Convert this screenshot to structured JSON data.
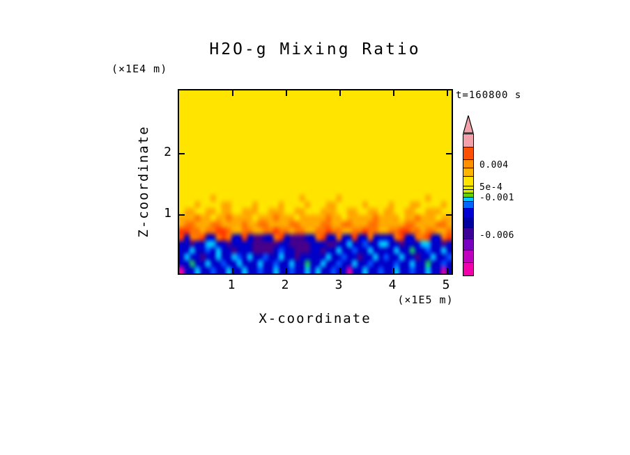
{
  "figure": {
    "background": "#ffffff",
    "text_color": "#000000"
  },
  "title": "H2O-g Mixing Ratio",
  "annotations": {
    "time_label": "t=160800 s"
  },
  "axes": {
    "x": {
      "label": "X-coordinate",
      "unit": "(×1E5 m)",
      "ticks": [
        "1",
        "2",
        "3",
        "4",
        "5"
      ],
      "tick_values": [
        1,
        2,
        3,
        4,
        5
      ]
    },
    "z": {
      "label": "Z-coordinate",
      "unit": "(×1E4 m)",
      "ticks": [
        "1",
        "2"
      ],
      "tick_values": [
        1,
        2
      ]
    }
  },
  "colorbar": {
    "arrow_color": "#f2a0aa",
    "labels": [
      {
        "text": "0.004",
        "value": 0.004,
        "pos_pct": 22.7
      },
      {
        "text": "5e-4",
        "value": 0.0005,
        "pos_pct": 38.4
      },
      {
        "text": "-0.001",
        "value": -0.001,
        "pos_pct": 45.8
      },
      {
        "text": "-0.006",
        "value": -0.006,
        "pos_pct": 72.4
      }
    ],
    "segments": [
      {
        "color": "#f2a0aa",
        "h": 18
      },
      {
        "color": "#ff5000",
        "h": 18
      },
      {
        "color": "#ff9000",
        "h": 12
      },
      {
        "color": "#ffb400",
        "h": 12
      },
      {
        "color": "#ffe400",
        "h": 14
      },
      {
        "color": "#e6eb00",
        "h": 5
      },
      {
        "color": "#cdeb00",
        "h": 5
      },
      {
        "color": "#64d200",
        "h": 6
      },
      {
        "color": "#00c8ff",
        "h": 6
      },
      {
        "color": "#0064ff",
        "h": 10
      },
      {
        "color": "#0000d2",
        "h": 14
      },
      {
        "color": "#0000a0",
        "h": 14
      },
      {
        "color": "#3c0096",
        "h": 16
      },
      {
        "color": "#7800be",
        "h": 16
      },
      {
        "color": "#be00be",
        "h": 18
      },
      {
        "color": "#f000aa",
        "h": 19
      }
    ]
  },
  "chart_data": {
    "type": "heatmap",
    "title": "H2O-g Mixing Ratio",
    "xlabel": "X-coordinate (×1E5 m)",
    "ylabel": "Z-coordinate (×1E4 m)",
    "time_label": "t=160800 s",
    "x_range": [
      0,
      5.13
    ],
    "z_range": [
      0,
      3.03
    ],
    "legend_position": "right",
    "value_of_level": {
      "y": 0.001,
      "o": 0.003,
      "O": 0.004,
      "r": 0.005,
      "g": 0.0002,
      "c": -0.001,
      "b": -0.002,
      "n": -0.004,
      "p": -0.006,
      "m": -0.008
    },
    "palette": {
      "y": "#ffe400",
      "o": "#ffaa00",
      "O": "#ff7300",
      "r": "#ff3c00",
      "g": "#19c864",
      "c": "#00c8ff",
      "b": "#0055ff",
      "n": "#0000c8",
      "p": "#46008c",
      "m": "#e100aa"
    },
    "grid_rows_top_to_bottom": [
      "yyyyyyyyyyyyyyyyyyyyyyyyyyyyyyyyyyyyyyyyyyyyyyyyyyyy",
      "yyyyyyyyyyyyyyyyyyyyyyyyyyyyyyyyyyyyyyyyyyyyyyyyyyyy",
      "yyyyyyyyyyyyyyyyyyyyyyyyyyyyyyyyyyyyyyyyyyyyyyyyyyyy",
      "yyyyyyyyyyyyyyyyyyyyyyyyyyyyyyyyyyyyyyyyyyyyyyyyyyyy",
      "yyyyyyyyyyyyyyyyyyyyyyyyyyyyyyyyyyyyyyyyyyyyyyyyyyyy",
      "yyyyyyyyyyyyyyyyyyyyyyyyyyyyyyyyyyyyyyyyyyyyyyyyyyyy",
      "yyyyyyyyyyyyyyyyyyyyyyyyyyyyyyyyyyyyyyyyyyyyyyyyyyyy",
      "yyyyyyyyyyyyyyyyyyyyyyyyyyyyyyyyyyyyyyyyyyyyyyyyyyyy",
      "yyyyyyyyyyyyyyyyyyyyyyyyyyyyyyyyyyyyyyyyyyyyyyyyyyyy",
      "yyyyyyyyyyyyyyyyyyyyyyyyyyyyyyyyyyyyyyyyyyyyyyyyyyyy",
      "yyyyyyyyyyyyyyyyyyyyyyyyyyyyyyyyyyyyyyyyyyyyyyyyyyyy",
      "yyyyyyyyyyyyyyyyyyyyyyyyyyyyyyyyyyyyyyyyyyyyyyyyyyyy",
      "yyyyyyyyyyyyyyyyyyyyyyyyyyyyyyyyyyyyyyyyyyyyyyyyyyyy",
      "yyyyyyyyyyyyyyyyyyyyyyyyyyyyyyyyyyyyyyyyyyyyyyyyyyyy",
      "yyyyyyyyyyyyyyyyyyyyyyyyyyyyyyyyyyyyyyyyyyyyyyyyyyyy",
      "yyyyyyyyyyyyyyyyyyyyyyyyyyyyyyyyyyyyyyyyyyyyyyyyyyyy",
      "yyyyyyoyyyyyyyyyyyyyyyyoyyyyyyoyyyyyyyyyyyyyyyyoyyyy",
      "yyyoyyyyooyyyyoyyyyoyyyyoyyyooyyyyyoyyyyoyyyooyyyyoy",
      "yooyyooyooyyoooyyoooyyooyyyoooyyooyyooyooyyooyyoooyy",
      "oooOooyooOooooyoooOoooyoooooOooyoooooOooooyooOoooyoo",
      "oOOoooOOooooOooOOooooOOooooOOooOOoooOOoooooOOooooOOo",
      "rrOOoOOrrOooOOooOOrOOoOOooOOrOOooOOrOOooOOrrOOoOOooO",
      "rnOOrnnOrOnnrnppnnOrnpppnnOrnnOnnrnnOnnnnOrnnOOrnnOr",
      "nnpnnccnnpnnnnpppppnnppppnnnppnncnnbnnccnnpnnnccnnpn",
      "nncnnbncnnpnnnppppnbnnpppnnpnncnnbnncnnnncnngnnbnncn",
      "ncnnpnncnncbncnnbnncnnpnnnnncnnbnnpnncnbnncnnpnncnnb",
      "nngnncnnbnncnnncnnbnncnngnncnnbnncnnbnnnnbnncnngnnbn",
      "mnncnnbnncnncnnbnncnnbnncncnnbnnmnncnnbnncnnbnncnnmn"
    ]
  }
}
